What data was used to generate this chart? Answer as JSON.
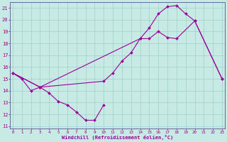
{
  "background_color": "#c8eae4",
  "line_color": "#990099",
  "marker": "D",
  "markersize": 2.0,
  "linewidth": 0.8,
  "xlim_min": -0.3,
  "xlim_max": 23.3,
  "ylim_min": 10.8,
  "ylim_max": 21.5,
  "xticks": [
    0,
    1,
    2,
    3,
    4,
    5,
    6,
    7,
    8,
    9,
    10,
    11,
    12,
    13,
    14,
    15,
    16,
    17,
    18,
    19,
    20,
    21,
    22,
    23
  ],
  "yticks": [
    11,
    12,
    13,
    14,
    15,
    16,
    17,
    18,
    19,
    20,
    21
  ],
  "grid_color": "#9ecece",
  "xlabel": "Windchill (Refroidissement éolien,°C)",
  "line1_x": [
    0,
    1,
    2,
    3,
    4,
    5,
    6,
    7,
    8,
    9,
    10
  ],
  "line1_y": [
    15.5,
    15.0,
    14.0,
    14.3,
    13.8,
    13.1,
    12.8,
    12.2,
    11.5,
    11.5,
    12.8
  ],
  "line2_x": [
    0,
    3,
    10,
    11,
    12,
    13,
    14,
    15,
    16,
    17,
    18,
    20,
    23
  ],
  "line2_y": [
    15.5,
    14.3,
    14.8,
    15.5,
    16.5,
    17.2,
    18.4,
    18.4,
    19.0,
    18.5,
    18.4,
    19.9,
    15.0
  ],
  "line3_x": [
    0,
    3,
    14,
    15,
    16,
    17,
    18,
    19,
    20,
    23
  ],
  "line3_y": [
    15.5,
    14.3,
    18.4,
    19.3,
    20.5,
    21.1,
    21.2,
    20.5,
    19.9,
    15.0
  ]
}
